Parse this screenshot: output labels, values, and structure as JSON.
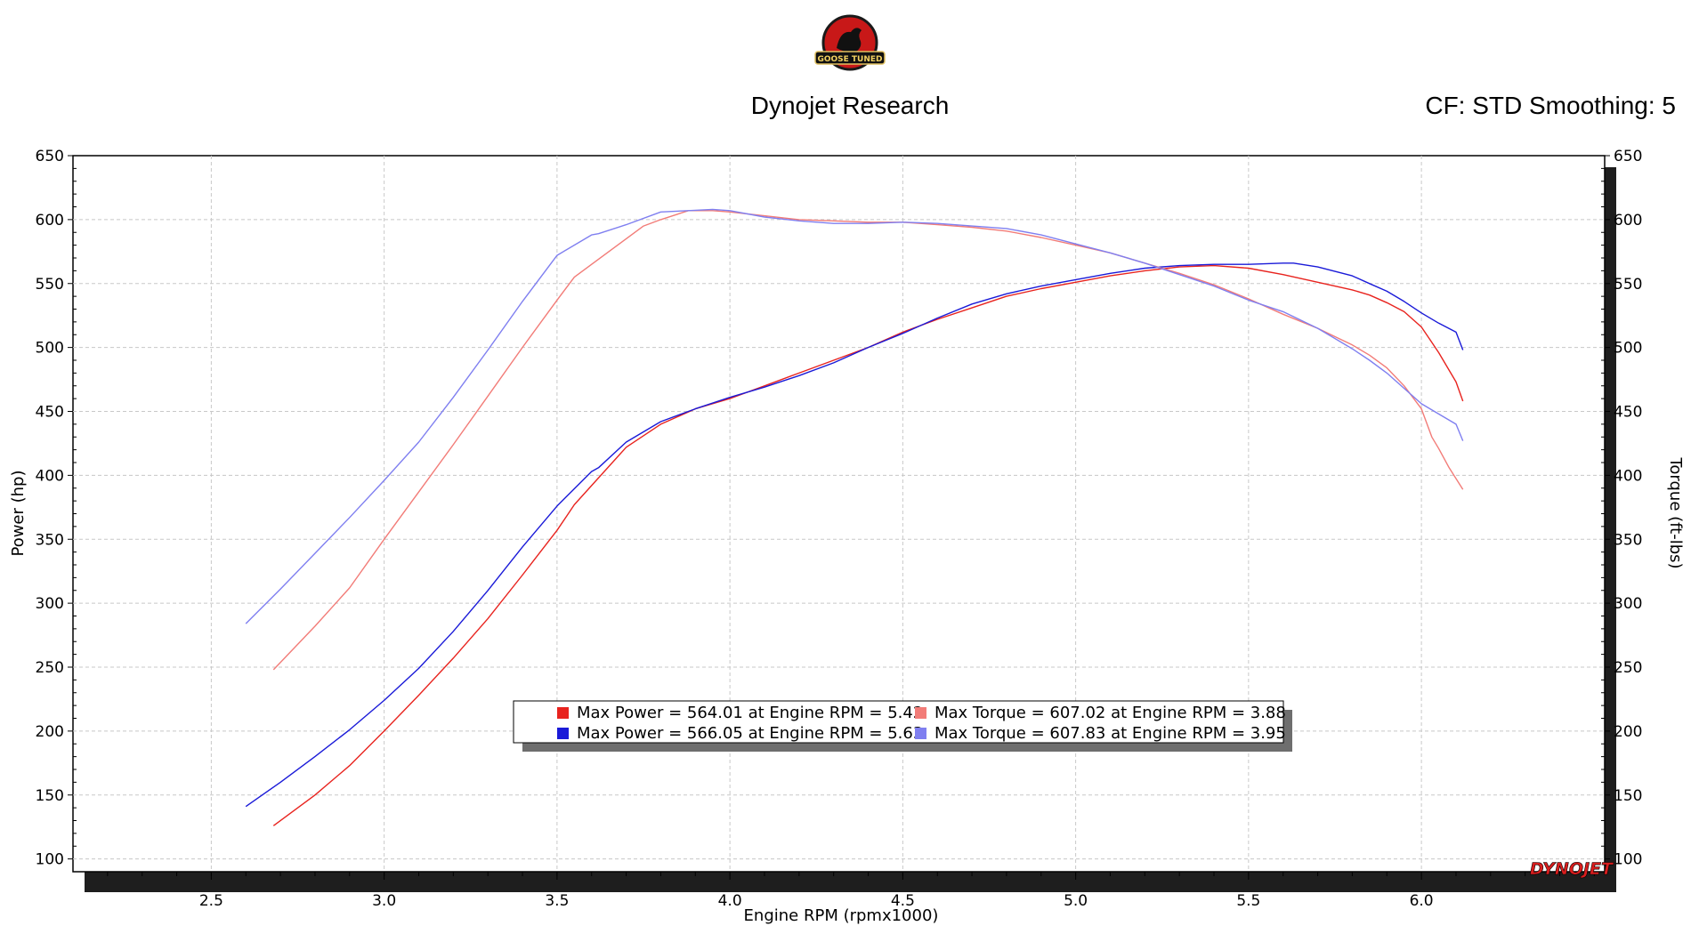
{
  "header": {
    "logo_text": "GOOSE TUNED",
    "title": "Dynojet Research",
    "settings": "CF: STD Smoothing: 5"
  },
  "brand": {
    "watermark": "DYNOJET"
  },
  "colors": {
    "power_run1": "#e8231e",
    "power_run2": "#1a1ad8",
    "torque_run1": "#f27c78",
    "torque_run2": "#7f7ff0"
  },
  "chart_data": {
    "type": "line",
    "xlabel": "Engine RPM (rpmx1000)",
    "ylabel_left": "Power (hp)",
    "ylabel_right": "Torque (ft-lbs)",
    "xlim": [
      2.1,
      6.53
    ],
    "ylim": [
      90,
      650
    ],
    "x_ticks": [
      "2.5",
      "3.0",
      "3.5",
      "4.0",
      "4.5",
      "5.0",
      "5.5",
      "6.0"
    ],
    "y_ticks": [
      "650",
      "600",
      "550",
      "500",
      "450",
      "400",
      "350",
      "300",
      "250",
      "200",
      "150",
      "100"
    ],
    "grid": true,
    "legend": {
      "position": "bottom-center",
      "entries": [
        "Max Power = 564.01 at Engine RPM = 5.42",
        "Max Power = 566.05 at Engine RPM = 5.63",
        "Max Torque = 607.02 at Engine RPM = 3.88",
        "Max Torque = 607.83 at Engine RPM = 3.95"
      ]
    },
    "series": [
      {
        "axis": "Power (hp)",
        "color": "#e8231e",
        "x": [
          2.68,
          2.8,
          2.9,
          3.0,
          3.1,
          3.2,
          3.3,
          3.4,
          3.5,
          3.55,
          3.6,
          3.7,
          3.8,
          3.9,
          4.0,
          4.1,
          4.2,
          4.3,
          4.4,
          4.5,
          4.6,
          4.7,
          4.8,
          4.9,
          5.0,
          5.1,
          5.2,
          5.3,
          5.4,
          5.5,
          5.6,
          5.7,
          5.8,
          5.85,
          5.9,
          5.95,
          6.0,
          6.02,
          6.05,
          6.1,
          6.12
        ],
        "y": [
          126,
          150,
          173,
          200,
          228,
          257,
          288,
          322,
          357,
          377,
          392,
          422,
          440,
          452,
          460,
          470,
          480,
          490,
          500,
          512,
          522,
          531,
          540,
          546,
          551,
          556,
          560,
          563,
          564,
          562,
          557,
          551,
          545,
          541,
          535,
          528,
          516,
          508,
          496,
          473,
          458
        ]
      },
      {
        "axis": "Power (hp)",
        "color": "#1a1ad8",
        "x": [
          2.6,
          2.7,
          2.8,
          2.9,
          3.0,
          3.1,
          3.2,
          3.3,
          3.4,
          3.5,
          3.6,
          3.62,
          3.7,
          3.8,
          3.9,
          4.0,
          4.1,
          4.2,
          4.3,
          4.4,
          4.5,
          4.6,
          4.7,
          4.8,
          4.9,
          5.0,
          5.1,
          5.2,
          5.3,
          5.4,
          5.5,
          5.6,
          5.63,
          5.7,
          5.8,
          5.85,
          5.9,
          5.95,
          6.0,
          6.05,
          6.1,
          6.12
        ],
        "y": [
          141,
          160,
          180,
          201,
          224,
          249,
          278,
          310,
          344,
          376,
          403,
          406,
          426,
          442,
          452,
          461,
          469,
          478,
          488,
          500,
          511,
          523,
          534,
          542,
          548,
          553,
          558,
          562,
          564,
          565,
          565,
          566,
          566,
          563,
          556,
          550,
          544,
          536,
          527,
          519,
          512,
          498
        ]
      },
      {
        "axis": "Torque (ft-lbs)",
        "color": "#f27c78",
        "x": [
          2.68,
          2.8,
          2.9,
          3.0,
          3.1,
          3.2,
          3.3,
          3.4,
          3.5,
          3.55,
          3.6,
          3.7,
          3.75,
          3.8,
          3.88,
          3.95,
          4.0,
          4.1,
          4.2,
          4.3,
          4.4,
          4.5,
          4.6,
          4.7,
          4.8,
          4.9,
          5.0,
          5.1,
          5.2,
          5.3,
          5.4,
          5.5,
          5.6,
          5.7,
          5.8,
          5.85,
          5.9,
          5.95,
          6.0,
          6.03,
          6.05,
          6.08,
          6.12
        ],
        "y": [
          248,
          282,
          312,
          350,
          387,
          424,
          462,
          500,
          537,
          555,
          565,
          585,
          595,
          600,
          607,
          607,
          606,
          603,
          600,
          599,
          598,
          598,
          596,
          594,
          591,
          586,
          580,
          574,
          566,
          558,
          549,
          538,
          526,
          515,
          502,
          494,
          484,
          470,
          452,
          430,
          421,
          406,
          389
        ]
      },
      {
        "axis": "Torque (ft-lbs)",
        "color": "#7f7ff0",
        "x": [
          2.6,
          2.7,
          2.8,
          2.9,
          3.0,
          3.1,
          3.2,
          3.3,
          3.4,
          3.5,
          3.6,
          3.62,
          3.7,
          3.8,
          3.88,
          3.95,
          4.0,
          4.1,
          4.2,
          4.3,
          4.4,
          4.5,
          4.6,
          4.7,
          4.8,
          4.9,
          5.0,
          5.1,
          5.2,
          5.3,
          5.4,
          5.5,
          5.6,
          5.7,
          5.8,
          5.85,
          5.9,
          5.95,
          6.0,
          6.05,
          6.1,
          6.12
        ],
        "y": [
          284,
          311,
          339,
          367,
          396,
          426,
          461,
          498,
          536,
          572,
          588,
          589,
          596,
          606,
          607,
          608,
          607,
          602,
          599,
          597,
          597,
          598,
          597,
          595,
          593,
          588,
          581,
          574,
          566,
          557,
          548,
          537,
          528,
          515,
          499,
          490,
          480,
          468,
          456,
          448,
          440,
          427
        ]
      }
    ]
  }
}
